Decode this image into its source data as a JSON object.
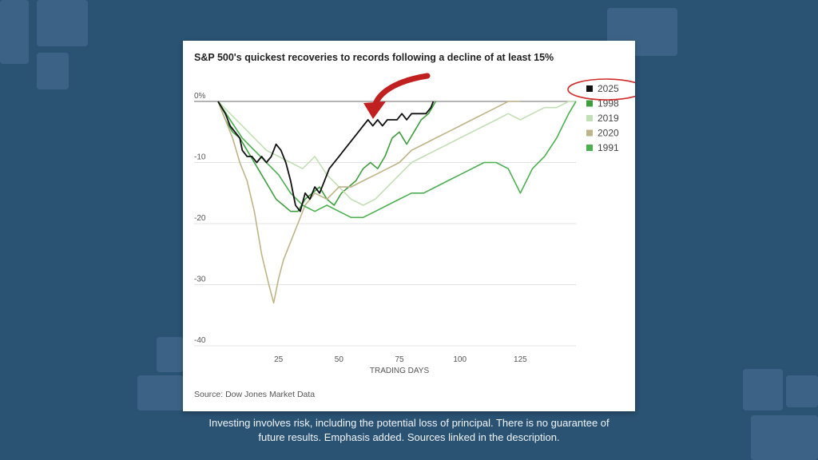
{
  "caption": {
    "line1": "Investing involves risk, including the potential loss of principal. There is no guarantee of",
    "line2": "future results. Emphasis added. Sources linked in the description."
  },
  "chart_data": {
    "type": "line",
    "title": "S&P 500's quickest recoveries to records following a decline of at least 15%",
    "xlabel": "TRADING DAYS",
    "ylabel": "",
    "xlim": [
      0,
      148
    ],
    "ylim": [
      -40,
      0
    ],
    "x_ticks": [
      25,
      50,
      75,
      100,
      125
    ],
    "y_ticks": [
      {
        "value": 0,
        "label": "0%"
      },
      {
        "value": -10,
        "label": "-10"
      },
      {
        "value": -20,
        "label": "-20"
      },
      {
        "value": -30,
        "label": "-30"
      },
      {
        "value": -40,
        "label": "-40"
      }
    ],
    "source": "Source: Dow Jones Market Data",
    "legend_position": "right",
    "annotations": [
      "red arrow pointing to 2025 line",
      "red circle around 2025 legend entry"
    ],
    "series": [
      {
        "name": "2025",
        "color": "#111111",
        "x": [
          0,
          3,
          5,
          7,
          9,
          10,
          12,
          14,
          16,
          18,
          20,
          22,
          24,
          26,
          28,
          30,
          32,
          34,
          36,
          38,
          40,
          42,
          44,
          46,
          48,
          50,
          52,
          54,
          56,
          58,
          60,
          62,
          64,
          66,
          68,
          70,
          72,
          74,
          76,
          78,
          80,
          82,
          84,
          86,
          88,
          89
        ],
        "y": [
          0,
          -2,
          -4,
          -5,
          -6,
          -8,
          -9,
          -9,
          -10,
          -9,
          -10,
          -9,
          -7,
          -8,
          -10,
          -13,
          -17,
          -18,
          -15,
          -16,
          -14,
          -15,
          -13,
          -11,
          -10,
          -9,
          -8,
          -7,
          -6,
          -5,
          -4,
          -3,
          -4,
          -3,
          -4,
          -3,
          -3,
          -3,
          -2,
          -3,
          -2,
          -2,
          -2,
          -2,
          -1,
          0
        ]
      },
      {
        "name": "1998",
        "color": "#3f9d3f",
        "x": [
          0,
          3,
          6,
          9,
          12,
          15,
          18,
          21,
          24,
          27,
          30,
          33,
          36,
          39,
          42,
          45,
          48,
          51,
          54,
          57,
          60,
          63,
          66,
          69,
          72,
          75,
          78,
          81,
          84,
          87,
          90
        ],
        "y": [
          0,
          -3,
          -5,
          -6,
          -8,
          -10,
          -12,
          -14,
          -16,
          -17,
          -18,
          -18,
          -16,
          -15,
          -14,
          -16,
          -17,
          -15,
          -14,
          -13,
          -11,
          -10,
          -11,
          -9,
          -6,
          -5,
          -7,
          -5,
          -3,
          -2,
          0
        ]
      },
      {
        "name": "2019",
        "color": "#c2dfb6",
        "x": [
          0,
          5,
          10,
          15,
          20,
          25,
          30,
          35,
          40,
          45,
          50,
          55,
          60,
          65,
          70,
          75,
          80,
          85,
          90,
          95,
          100,
          105,
          110,
          115,
          120,
          125,
          130,
          135,
          140,
          145,
          148
        ],
        "y": [
          0,
          -2,
          -4,
          -6,
          -8,
          -9,
          -10,
          -11,
          -9,
          -12,
          -14,
          -16,
          -17,
          -16,
          -14,
          -12,
          -10,
          -9,
          -8,
          -7,
          -6,
          -5,
          -4,
          -3,
          -2,
          -3,
          -2,
          -1,
          -1,
          0,
          0
        ]
      },
      {
        "name": "2020",
        "color": "#bfb488",
        "x": [
          0,
          3,
          6,
          9,
          12,
          15,
          18,
          21,
          23,
          25,
          27,
          30,
          33,
          36,
          40,
          45,
          50,
          55,
          60,
          65,
          70,
          75,
          80,
          85,
          90,
          95,
          100,
          105,
          110,
          115,
          120,
          125
        ],
        "y": [
          0,
          -3,
          -6,
          -10,
          -13,
          -18,
          -25,
          -30,
          -33,
          -29,
          -26,
          -23,
          -20,
          -17,
          -15,
          -16,
          -14,
          -14,
          -13,
          -12,
          -11,
          -10,
          -8,
          -7,
          -6,
          -5,
          -4,
          -3,
          -2,
          -1,
          0,
          0
        ]
      },
      {
        "name": "1991",
        "color": "#4caf50",
        "x": [
          0,
          5,
          10,
          15,
          20,
          25,
          30,
          35,
          40,
          45,
          50,
          55,
          60,
          65,
          70,
          75,
          80,
          85,
          90,
          95,
          100,
          105,
          110,
          115,
          120,
          125,
          130,
          135,
          140,
          145,
          148
        ],
        "y": [
          0,
          -3,
          -6,
          -8,
          -10,
          -12,
          -15,
          -17,
          -18,
          -17,
          -18,
          -19,
          -19,
          -18,
          -17,
          -16,
          -15,
          -15,
          -14,
          -13,
          -12,
          -11,
          -10,
          -10,
          -11,
          -15,
          -11,
          -9,
          -6,
          -2,
          0
        ]
      }
    ]
  }
}
